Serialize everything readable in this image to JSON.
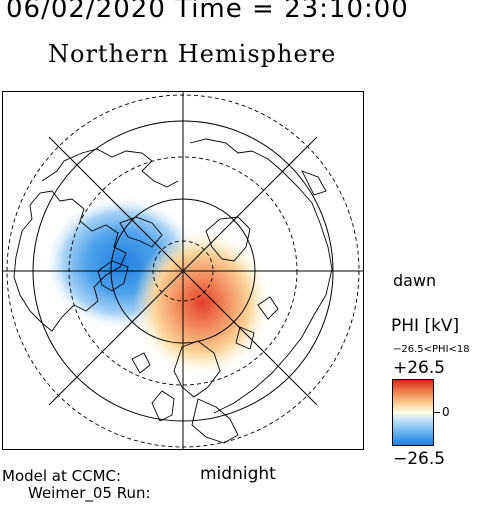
{
  "header": {
    "timestamp": "06/02/2020 Time = 23:10:00",
    "title": "Northern Hemisphere"
  },
  "map": {
    "projection": "polar stereographic, north pole",
    "center_latitude": 90,
    "latitude_circles_deg": [
      80,
      70,
      60,
      50,
      40
    ],
    "meridian_spacing_deg": 45,
    "potential_patterns": [
      {
        "sign": "negative",
        "location": "dusk/pre-midnight sector over Canada-Greenland",
        "color": "#1f7fe0"
      },
      {
        "sign": "positive",
        "location": "post-midnight sector over Arctic Ocean toward Scandinavia",
        "color": "#d62718"
      }
    ]
  },
  "labels": {
    "dawn": "dawn",
    "midnight": "midnight",
    "model_line1": "Model at CCMC:",
    "model_line2": "Weimer_05 Run:"
  },
  "colorbar": {
    "quantity": "PHI [kV]",
    "range_text": "−26.5<PHI<18",
    "max_label": "+26.5",
    "zero_label": "0",
    "min_label": "−26.5",
    "max_value": 26.5,
    "min_value": -26.5,
    "colors": {
      "max": "#d62718",
      "zero": "#ffffe6",
      "min": "#1f7fe0"
    }
  }
}
